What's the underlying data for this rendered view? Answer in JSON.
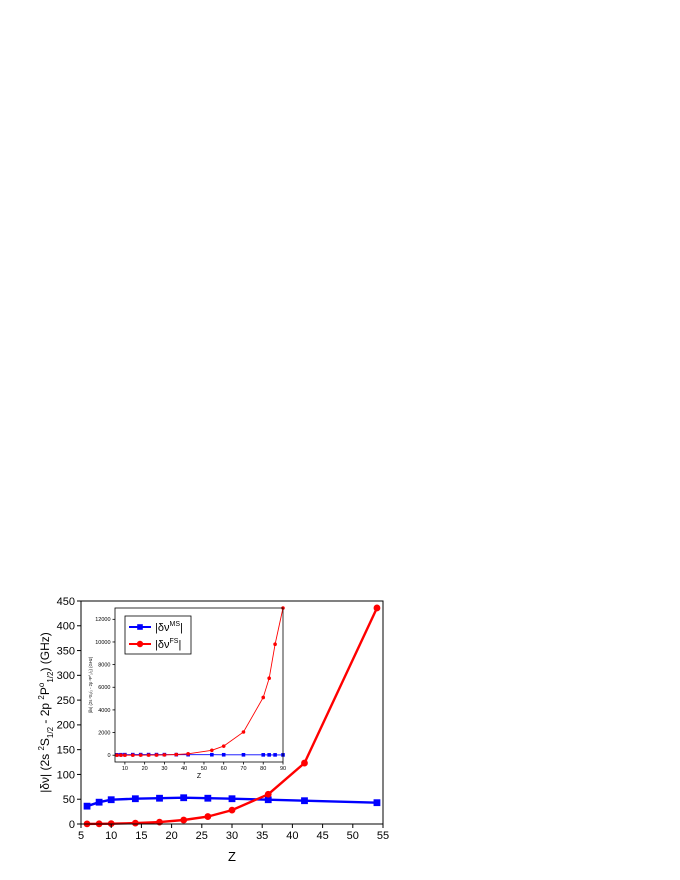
{
  "chart_data": [
    {
      "type": "line",
      "title": "",
      "xlabel": "Z",
      "ylabel_parts": {
        "a": "|δν| (2s ",
        "sup1": "2",
        "b": "S",
        "sub1": "1/2",
        "c": " - 2p ",
        "sup2": "2",
        "d": "P",
        "sup3": "o",
        "sub2": "1/2",
        "e": ") (GHz)"
      },
      "xlim": [
        5,
        55
      ],
      "ylim": [
        0,
        450
      ],
      "xticks": [
        5,
        10,
        15,
        20,
        25,
        30,
        35,
        40,
        45,
        50,
        55
      ],
      "yticks": [
        0,
        50,
        100,
        150,
        200,
        250,
        300,
        350,
        400,
        450
      ],
      "series": [
        {
          "name_base": "|δν",
          "name_sup": "MS",
          "name_end": "|",
          "color": "#0000ff",
          "marker": "square",
          "x": [
            6,
            8,
            10,
            14,
            18,
            22,
            26,
            30,
            36,
            42,
            54
          ],
          "y": [
            36,
            44,
            49,
            51,
            52,
            53,
            52,
            51,
            49,
            47,
            43
          ]
        },
        {
          "name_base": "|δν",
          "name_sup": "FS",
          "name_end": "|",
          "color": "#ff0000",
          "marker": "circle",
          "x": [
            6,
            8,
            10,
            14,
            18,
            22,
            26,
            30,
            36,
            42,
            54
          ],
          "y": [
            0.2,
            0.4,
            0.7,
            1.8,
            3.8,
            8,
            15,
            28,
            60,
            123,
            436
          ]
        }
      ],
      "legend": "top-left, inside inset"
    },
    {
      "type": "line",
      "title": "",
      "xlabel": "Z",
      "ylabel": "|δν| (2s ²S₁/₂ - 2p ²P°₁/₂) (GHz)",
      "xlim": [
        5,
        90
      ],
      "ylim": [
        -600,
        13000
      ],
      "xticks": [
        10,
        20,
        30,
        40,
        50,
        60,
        70,
        80,
        90
      ],
      "yticks": [
        0,
        2000,
        4000,
        6000,
        8000,
        10000,
        12000
      ],
      "series": [
        {
          "color": "#0000ff",
          "marker": "square",
          "x": [
            6,
            8,
            10,
            14,
            18,
            22,
            26,
            30,
            36,
            42,
            54,
            60,
            70,
            80,
            83,
            86,
            90
          ],
          "y": [
            36,
            44,
            49,
            51,
            52,
            53,
            52,
            51,
            49,
            47,
            43,
            40,
            36,
            32,
            31,
            30,
            28
          ]
        },
        {
          "color": "#ff0000",
          "marker": "circle",
          "x": [
            6,
            8,
            10,
            14,
            18,
            22,
            26,
            30,
            36,
            42,
            54,
            60,
            70,
            80,
            83,
            86,
            90
          ],
          "y": [
            0.2,
            0.4,
            0.7,
            1.8,
            3.8,
            8,
            15,
            28,
            60,
            123,
            436,
            800,
            2050,
            5100,
            6800,
            9800,
            13000
          ]
        }
      ]
    }
  ]
}
